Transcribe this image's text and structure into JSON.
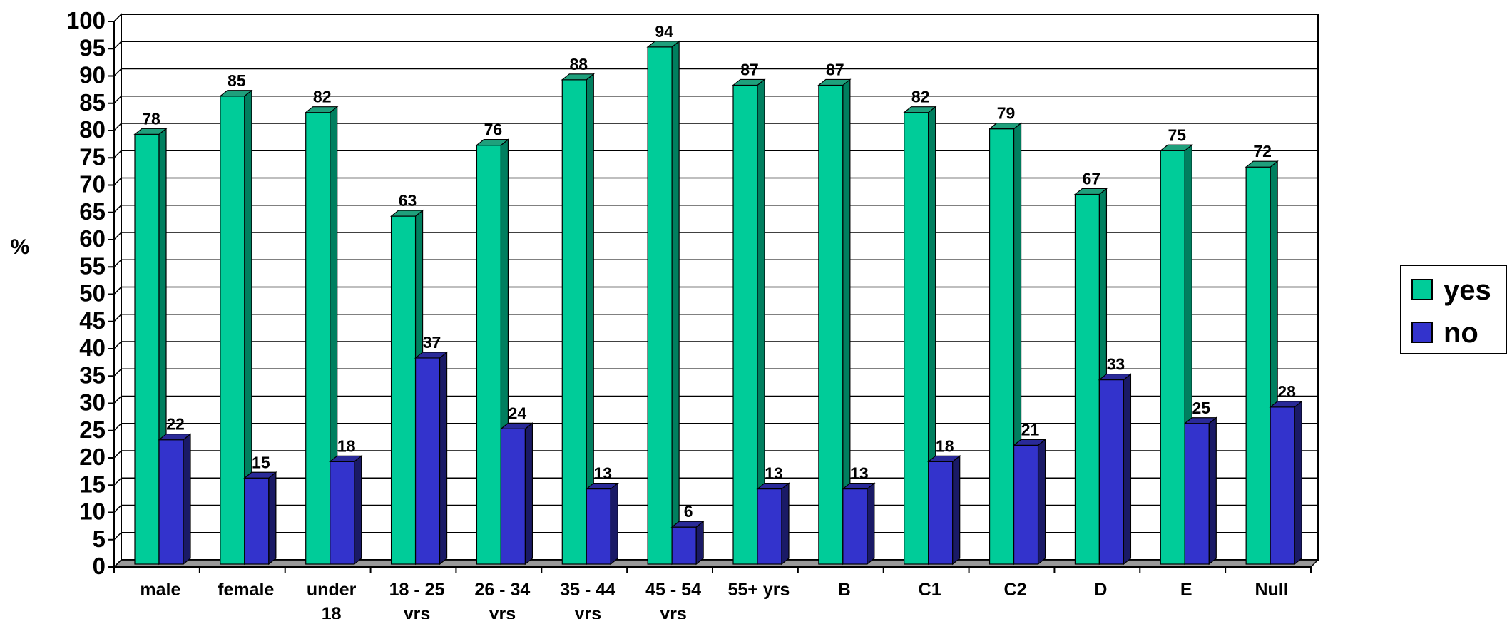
{
  "chart_data": {
    "type": "bar",
    "title": "",
    "xlabel": "",
    "ylabel": "%",
    "ylim": [
      0,
      100
    ],
    "ytick_step": 5,
    "grid": true,
    "legend_position": "right",
    "categories": [
      [
        "male"
      ],
      [
        "female"
      ],
      [
        "under",
        "18"
      ],
      [
        "18 - 25",
        "yrs"
      ],
      [
        "26 - 34",
        "yrs"
      ],
      [
        "35 - 44",
        "yrs"
      ],
      [
        "45 - 54",
        "yrs"
      ],
      [
        "55+ yrs"
      ],
      [
        "B"
      ],
      [
        "C1"
      ],
      [
        "C2"
      ],
      [
        "D"
      ],
      [
        "E"
      ],
      [
        "Null"
      ]
    ],
    "series": [
      {
        "name": "yes",
        "color": "#00cc99",
        "side_color": "#007f5f",
        "top_color": "#1fa07c",
        "values": [
          78,
          85,
          82,
          63,
          76,
          88,
          94,
          87,
          87,
          82,
          79,
          67,
          75,
          72
        ]
      },
      {
        "name": "no",
        "color": "#3333cc",
        "side_color": "#1a1a66",
        "top_color": "#2a2a99",
        "values": [
          22,
          15,
          18,
          37,
          24,
          13,
          6,
          13,
          13,
          18,
          21,
          33,
          25,
          28
        ]
      }
    ]
  }
}
